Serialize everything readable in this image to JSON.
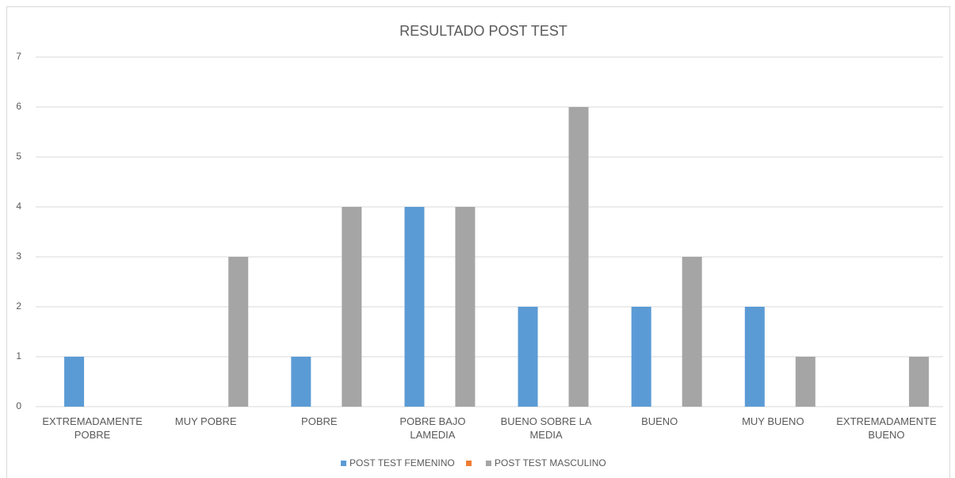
{
  "chart_data": {
    "type": "bar",
    "title": "RESULTADO POST TEST",
    "categories": [
      "EXTREMADAMENTE POBRE",
      "MUY POBRE",
      "POBRE",
      "POBRE BAJO LAMEDIA",
      "BUENO SOBRE LA MEDIA",
      "BUENO",
      "MUY BUENO",
      "EXTREMADAMENTE BUENO"
    ],
    "series": [
      {
        "name": "POST TEST FEMENINO",
        "color": "#5b9bd5",
        "values": [
          1,
          0,
          1,
          4,
          2,
          2,
          2,
          0
        ]
      },
      {
        "color": "#ed7d31",
        "values": [
          0,
          0,
          0,
          0,
          0,
          0,
          0,
          0
        ]
      },
      {
        "name": "POST TEST MASCULINO",
        "color": "#a5a5a5",
        "values": [
          0,
          3,
          4,
          4,
          6,
          3,
          1,
          1
        ]
      }
    ],
    "ylim": [
      0,
      7
    ],
    "yticks": [
      0,
      1,
      2,
      3,
      4,
      5,
      6,
      7
    ],
    "grid": true,
    "legend": "bottom"
  }
}
